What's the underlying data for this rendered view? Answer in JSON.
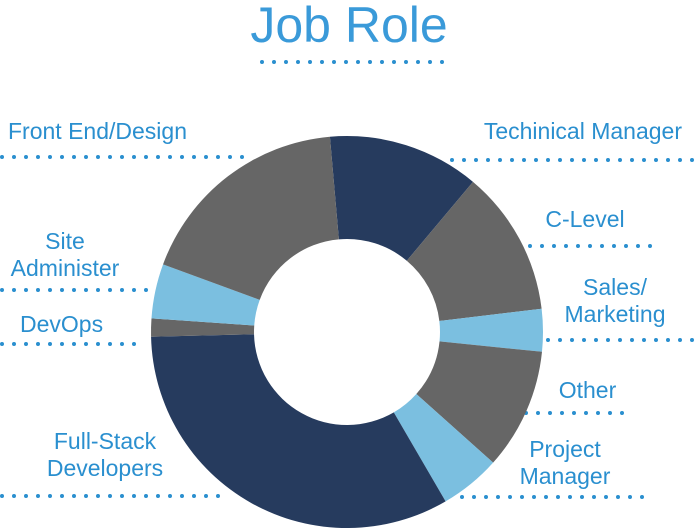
{
  "chart_data": {
    "type": "donut",
    "title": "Job Role",
    "categories": [
      "Techinical Manager",
      "C-Level",
      "Sales/ Marketing",
      "Other",
      "Project Manager",
      "Full-Stack Developers",
      "DevOps",
      "Site Administer",
      "Front End/Design"
    ],
    "values": [
      12.5,
      12,
      3.5,
      10,
      5,
      33,
      1.5,
      4.5,
      18
    ],
    "colors": [
      "#263b5e",
      "#666666",
      "#7bbfe0",
      "#666666",
      "#7bbfe0",
      "#263b5e",
      "#666666",
      "#7bbfe0",
      "#666666"
    ]
  }
}
